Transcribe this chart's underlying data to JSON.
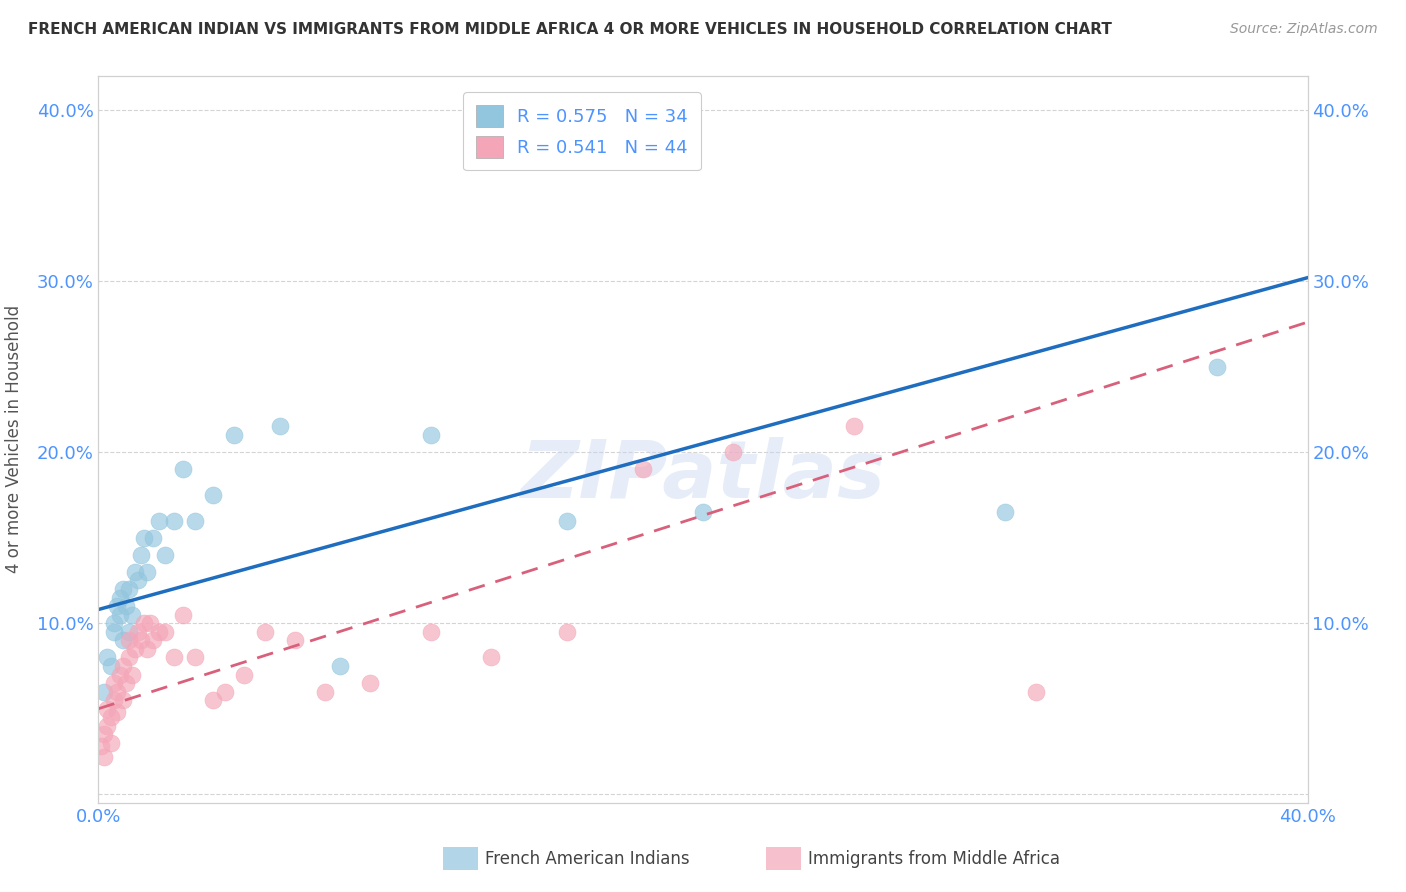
{
  "title": "FRENCH AMERICAN INDIAN VS IMMIGRANTS FROM MIDDLE AFRICA 4 OR MORE VEHICLES IN HOUSEHOLD CORRELATION CHART",
  "source": "Source: ZipAtlas.com",
  "ylabel": "4 or more Vehicles in Household",
  "xmin": 0.0,
  "xmax": 0.4,
  "ymin": -0.005,
  "ymax": 0.42,
  "legend_labels": [
    "French American Indians",
    "Immigrants from Middle Africa"
  ],
  "R_blue": 0.575,
  "N_blue": 34,
  "R_pink": 0.541,
  "N_pink": 44,
  "color_blue": "#92c5de",
  "color_pink": "#f4a6b8",
  "line_blue": "#1f6dbf",
  "line_pink": "#d9607a",
  "line_blue_intercept": 0.108,
  "line_blue_slope": 0.485,
  "line_pink_intercept": 0.05,
  "line_pink_slope": 0.565,
  "axis_label_color": "#4d94ff",
  "tick_color": "#4d94ff",
  "grid_color": "#d0d0d0",
  "watermark": "ZIPatlas",
  "blue_x": [
    0.002,
    0.003,
    0.004,
    0.005,
    0.005,
    0.006,
    0.007,
    0.007,
    0.008,
    0.008,
    0.009,
    0.01,
    0.01,
    0.011,
    0.012,
    0.013,
    0.014,
    0.015,
    0.016,
    0.018,
    0.02,
    0.022,
    0.025,
    0.028,
    0.032,
    0.038,
    0.045,
    0.06,
    0.08,
    0.11,
    0.155,
    0.2,
    0.3,
    0.37
  ],
  "blue_y": [
    0.06,
    0.08,
    0.075,
    0.095,
    0.1,
    0.11,
    0.105,
    0.115,
    0.09,
    0.12,
    0.11,
    0.095,
    0.12,
    0.105,
    0.13,
    0.125,
    0.14,
    0.15,
    0.13,
    0.15,
    0.16,
    0.14,
    0.16,
    0.19,
    0.16,
    0.175,
    0.21,
    0.215,
    0.075,
    0.21,
    0.16,
    0.165,
    0.165,
    0.25
  ],
  "pink_x": [
    0.001,
    0.002,
    0.002,
    0.003,
    0.003,
    0.004,
    0.004,
    0.005,
    0.005,
    0.006,
    0.006,
    0.007,
    0.008,
    0.008,
    0.009,
    0.01,
    0.01,
    0.011,
    0.012,
    0.013,
    0.014,
    0.015,
    0.016,
    0.017,
    0.018,
    0.02,
    0.022,
    0.025,
    0.028,
    0.032,
    0.038,
    0.042,
    0.048,
    0.055,
    0.065,
    0.075,
    0.09,
    0.11,
    0.13,
    0.155,
    0.18,
    0.21,
    0.25,
    0.31
  ],
  "pink_y": [
    0.028,
    0.022,
    0.035,
    0.04,
    0.05,
    0.03,
    0.045,
    0.055,
    0.065,
    0.048,
    0.06,
    0.07,
    0.055,
    0.075,
    0.065,
    0.08,
    0.09,
    0.07,
    0.085,
    0.095,
    0.09,
    0.1,
    0.085,
    0.1,
    0.09,
    0.095,
    0.095,
    0.08,
    0.105,
    0.08,
    0.055,
    0.06,
    0.07,
    0.095,
    0.09,
    0.06,
    0.065,
    0.095,
    0.08,
    0.095,
    0.19,
    0.2,
    0.215,
    0.06
  ]
}
